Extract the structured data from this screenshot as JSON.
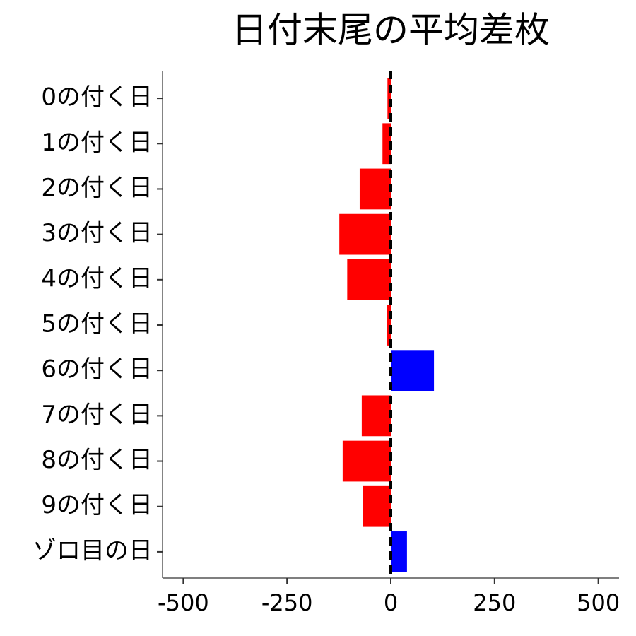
{
  "chart_data": {
    "type": "barh",
    "title": "日付末尾の平均差枚",
    "categories": [
      "0の付く日",
      "1の付く日",
      "2の付く日",
      "3の付く日",
      "4の付く日",
      "5の付く日",
      "6の付く日",
      "7の付く日",
      "8の付く日",
      "9の付く日",
      "ゾロ目の日"
    ],
    "values": [
      -8,
      -20,
      -75,
      -124,
      -105,
      -10,
      104,
      -70,
      -116,
      -68,
      39
    ],
    "colors": [
      "#ff0000",
      "#ff0000",
      "#ff0000",
      "#ff0000",
      "#ff0000",
      "#ff0000",
      "#0000ff",
      "#ff0000",
      "#ff0000",
      "#ff0000",
      "#0000ff"
    ],
    "xlim": [
      -550,
      550
    ],
    "xticks": [
      -500,
      -250,
      0,
      250,
      500
    ],
    "vline": 0
  }
}
